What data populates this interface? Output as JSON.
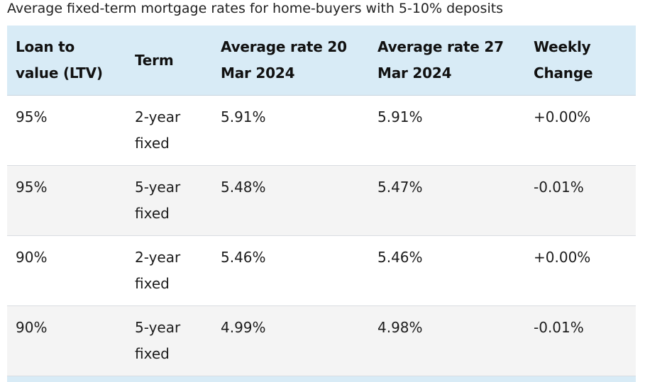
{
  "caption": "Average fixed-term mortgage rates for home-buyers with 5-10% deposits",
  "table": {
    "headers": [
      "Loan to value (LTV)",
      "Term",
      "Average rate 20 Mar 2024",
      "Average rate 27 Mar 2024",
      "Weekly Change"
    ],
    "rows": [
      {
        "ltv": "95%",
        "term": "2-year fixed",
        "rate_20_mar": "5.91%",
        "rate_27_mar": "5.91%",
        "weekly_change": "+0.00%"
      },
      {
        "ltv": "95%",
        "term": "5-year fixed",
        "rate_20_mar": "5.48%",
        "rate_27_mar": "5.47%",
        "weekly_change": "-0.01%"
      },
      {
        "ltv": "90%",
        "term": "2-year fixed",
        "rate_20_mar": "5.46%",
        "rate_27_mar": "5.46%",
        "weekly_change": "+0.00%"
      },
      {
        "ltv": "90%",
        "term": "5-year fixed",
        "rate_20_mar": "4.99%",
        "rate_27_mar": "4.98%",
        "weekly_change": "-0.01%"
      }
    ]
  },
  "colors": {
    "header_background": "#d8ebf6",
    "alt_row_background": "#f4f4f4",
    "text": "#1a1a1a"
  }
}
